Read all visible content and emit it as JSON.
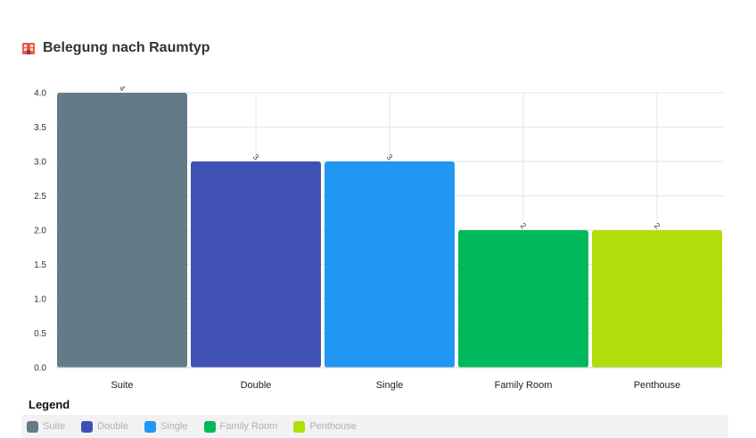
{
  "header": {
    "title": "Belegung nach Raumtyp",
    "icon": "hotel-icon"
  },
  "legend": {
    "title": "Legend",
    "items": [
      {
        "label": "Suite",
        "color": "#637a87"
      },
      {
        "label": "Double",
        "color": "#3f51b5"
      },
      {
        "label": "Single",
        "color": "#2196f3"
      },
      {
        "label": "Family Room",
        "color": "#00b85c"
      },
      {
        "label": "Penthouse",
        "color": "#b0de0a"
      }
    ]
  },
  "chart_data": {
    "type": "bar",
    "title": "Belegung nach Raumtyp",
    "categories": [
      "Suite",
      "Double",
      "Single",
      "Family Room",
      "Penthouse"
    ],
    "values": [
      4,
      3,
      3,
      2,
      2
    ],
    "colors": [
      "#637a87",
      "#3f51b5",
      "#2196f3",
      "#00b85c",
      "#b0de0a"
    ],
    "data_labels": [
      "4",
      "3",
      "3",
      "2",
      "2"
    ],
    "yticks": [
      "0.0",
      "0.5",
      "1.0",
      "1.5",
      "2.0",
      "2.5",
      "3.0",
      "3.5",
      "4.0"
    ],
    "ylim": [
      0,
      4
    ],
    "grid": true,
    "legend_position": "bottom"
  }
}
